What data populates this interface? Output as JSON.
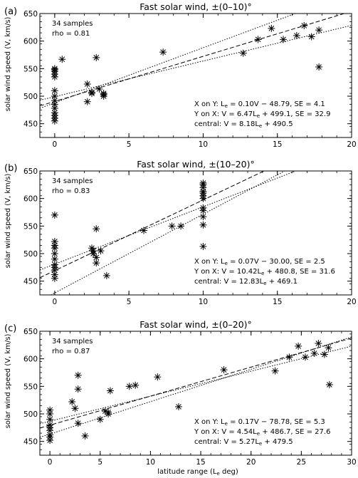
{
  "figure": {
    "shared_xlabel": "latitude range (L",
    "shared_xlabel_sub": "e",
    "shared_xlabel_tail": " deg)",
    "ylabel": "solar wind speed (V, km/s)"
  },
  "chart_data": [
    {
      "type": "scatter",
      "panel": "(a)",
      "title": "Fast solar wind, ±(0–10)°",
      "xlim": [
        -1,
        20
      ],
      "ylim": [
        425,
        650
      ],
      "xticks": [
        0,
        5,
        10,
        15,
        20
      ],
      "yticks": [
        450,
        500,
        550,
        600,
        650
      ],
      "samples_label": "34 samples",
      "rho_label": "rho = 0.81",
      "fits": [
        {
          "label": "X on Y: L",
          "sub": "e",
          "rest": " = 0.10V − 48.79,  SE = 4.1"
        },
        {
          "label": "Y on X: V = 6.47L",
          "sub": "e",
          "rest": " + 499.1,  SE = 32.9"
        },
        {
          "label": "central: V = 8.18L",
          "sub": "e",
          "rest": " + 490.5"
        }
      ],
      "lines": {
        "central": {
          "slope": 8.18,
          "intercept": 490.5
        },
        "x_on_y": {
          "slope": 10.0,
          "intercept": 487.9
        },
        "y_on_x": {
          "slope": 6.47,
          "intercept": 499.1
        }
      },
      "points": [
        [
          0,
          455
        ],
        [
          0,
          460
        ],
        [
          0,
          465
        ],
        [
          0,
          478
        ],
        [
          0,
          485
        ],
        [
          0,
          492
        ],
        [
          0,
          500
        ],
        [
          0,
          510
        ],
        [
          0,
          535
        ],
        [
          0,
          540
        ],
        [
          0,
          545
        ],
        [
          0,
          550
        ],
        [
          0.5,
          567
        ],
        [
          2.2,
          490
        ],
        [
          2.2,
          522
        ],
        [
          2.5,
          505
        ],
        [
          2.8,
          570
        ],
        [
          3.0,
          513
        ],
        [
          3.3,
          503
        ],
        [
          3.3,
          500
        ],
        [
          7.3,
          580
        ],
        [
          12.7,
          578
        ],
        [
          13.7,
          603
        ],
        [
          14.6,
          623
        ],
        [
          15.4,
          603
        ],
        [
          16.3,
          610
        ],
        [
          16.8,
          628
        ],
        [
          17.3,
          608
        ],
        [
          17.8,
          620
        ],
        [
          17.8,
          553
        ],
        [
          0,
          470
        ],
        [
          0,
          548
        ],
        [
          3.3,
          505
        ],
        [
          2.5,
          507
        ]
      ]
    },
    {
      "type": "scatter",
      "panel": "(b)",
      "title": "Fast solar wind, ±(10–20)°",
      "xlim": [
        -1,
        20
      ],
      "ylim": [
        425,
        650
      ],
      "xticks": [
        0,
        5,
        10,
        15,
        20
      ],
      "yticks": [
        450,
        500,
        550,
        600,
        650
      ],
      "samples_label": "34 samples",
      "rho_label": "rho = 0.83",
      "fits": [
        {
          "label": "X on Y: L",
          "sub": "e",
          "rest": " = 0.07V − 30.00,  SE = 2.5"
        },
        {
          "label": "Y on X: V = 10.42L",
          "sub": "e",
          "rest": " + 480.8,  SE = 31.6"
        },
        {
          "label": "central: V = 12.83L",
          "sub": "e",
          "rest": " + 469.1"
        }
      ],
      "lines": {
        "central": {
          "slope": 12.83,
          "intercept": 469.1
        },
        "x_on_y": {
          "slope": 14.29,
          "intercept": 428.6
        },
        "y_on_x": {
          "slope": 10.42,
          "intercept": 480.8
        }
      },
      "points": [
        [
          0,
          455
        ],
        [
          0,
          462
        ],
        [
          0,
          470
        ],
        [
          0,
          480
        ],
        [
          0,
          490
        ],
        [
          0,
          500
        ],
        [
          0,
          510
        ],
        [
          0,
          522
        ],
        [
          0,
          570
        ],
        [
          2.5,
          510
        ],
        [
          2.6,
          505
        ],
        [
          2.8,
          545
        ],
        [
          2.8,
          493
        ],
        [
          2.8,
          483
        ],
        [
          3.1,
          505
        ],
        [
          3.5,
          460
        ],
        [
          6.0,
          542
        ],
        [
          7.9,
          550
        ],
        [
          8.5,
          550
        ],
        [
          10,
          513
        ],
        [
          10,
          552
        ],
        [
          10,
          567
        ],
        [
          10,
          578
        ],
        [
          10,
          583
        ],
        [
          10,
          600
        ],
        [
          10,
          605
        ],
        [
          10,
          613
        ],
        [
          10,
          620
        ],
        [
          10,
          625
        ],
        [
          10,
          628
        ],
        [
          0,
          475
        ],
        [
          0,
          515
        ],
        [
          2.6,
          500
        ],
        [
          10,
          610
        ]
      ]
    },
    {
      "type": "scatter",
      "panel": "(c)",
      "title": "Fast solar wind, ±(0–20)°",
      "xlim": [
        -1,
        30
      ],
      "ylim": [
        425,
        650
      ],
      "xticks": [
        0,
        5,
        10,
        15,
        20,
        25,
        30
      ],
      "yticks": [
        450,
        500,
        550,
        600,
        650
      ],
      "xlabel": "latitude range (L_e deg)",
      "samples_label": "34 samples",
      "rho_label": "rho = 0.87",
      "fits": [
        {
          "label": "X on Y: L",
          "sub": "e",
          "rest": " = 0.17V − 78.78,  SE = 5.3"
        },
        {
          "label": "Y on X: V = 4.54L",
          "sub": "e",
          "rest": " + 486.7,  SE = 27.6"
        },
        {
          "label": "central: V = 5.27L",
          "sub": "e",
          "rest": " + 479.5"
        }
      ],
      "lines": {
        "central": {
          "slope": 5.27,
          "intercept": 479.5
        },
        "x_on_y": {
          "slope": 5.88,
          "intercept": 463.4
        },
        "y_on_x": {
          "slope": 4.54,
          "intercept": 486.7
        }
      },
      "points": [
        [
          0,
          452
        ],
        [
          0,
          458
        ],
        [
          0,
          462
        ],
        [
          0,
          470
        ],
        [
          0,
          480
        ],
        [
          0,
          490
        ],
        [
          0,
          500
        ],
        [
          0,
          507
        ],
        [
          2.2,
          522
        ],
        [
          2.5,
          510
        ],
        [
          2.8,
          570
        ],
        [
          2.8,
          545
        ],
        [
          2.8,
          483
        ],
        [
          3.5,
          460
        ],
        [
          5.0,
          490
        ],
        [
          5.5,
          505
        ],
        [
          5.8,
          500
        ],
        [
          6.0,
          542
        ],
        [
          7.9,
          550
        ],
        [
          8.5,
          552
        ],
        [
          10.7,
          567
        ],
        [
          12.8,
          513
        ],
        [
          17.3,
          580
        ],
        [
          22.4,
          578
        ],
        [
          23.8,
          603
        ],
        [
          24.7,
          623
        ],
        [
          25.4,
          603
        ],
        [
          26.3,
          610
        ],
        [
          26.7,
          628
        ],
        [
          27.3,
          608
        ],
        [
          27.7,
          620
        ],
        [
          27.8,
          553
        ],
        [
          0,
          475
        ],
        [
          5.8,
          503
        ]
      ]
    }
  ]
}
